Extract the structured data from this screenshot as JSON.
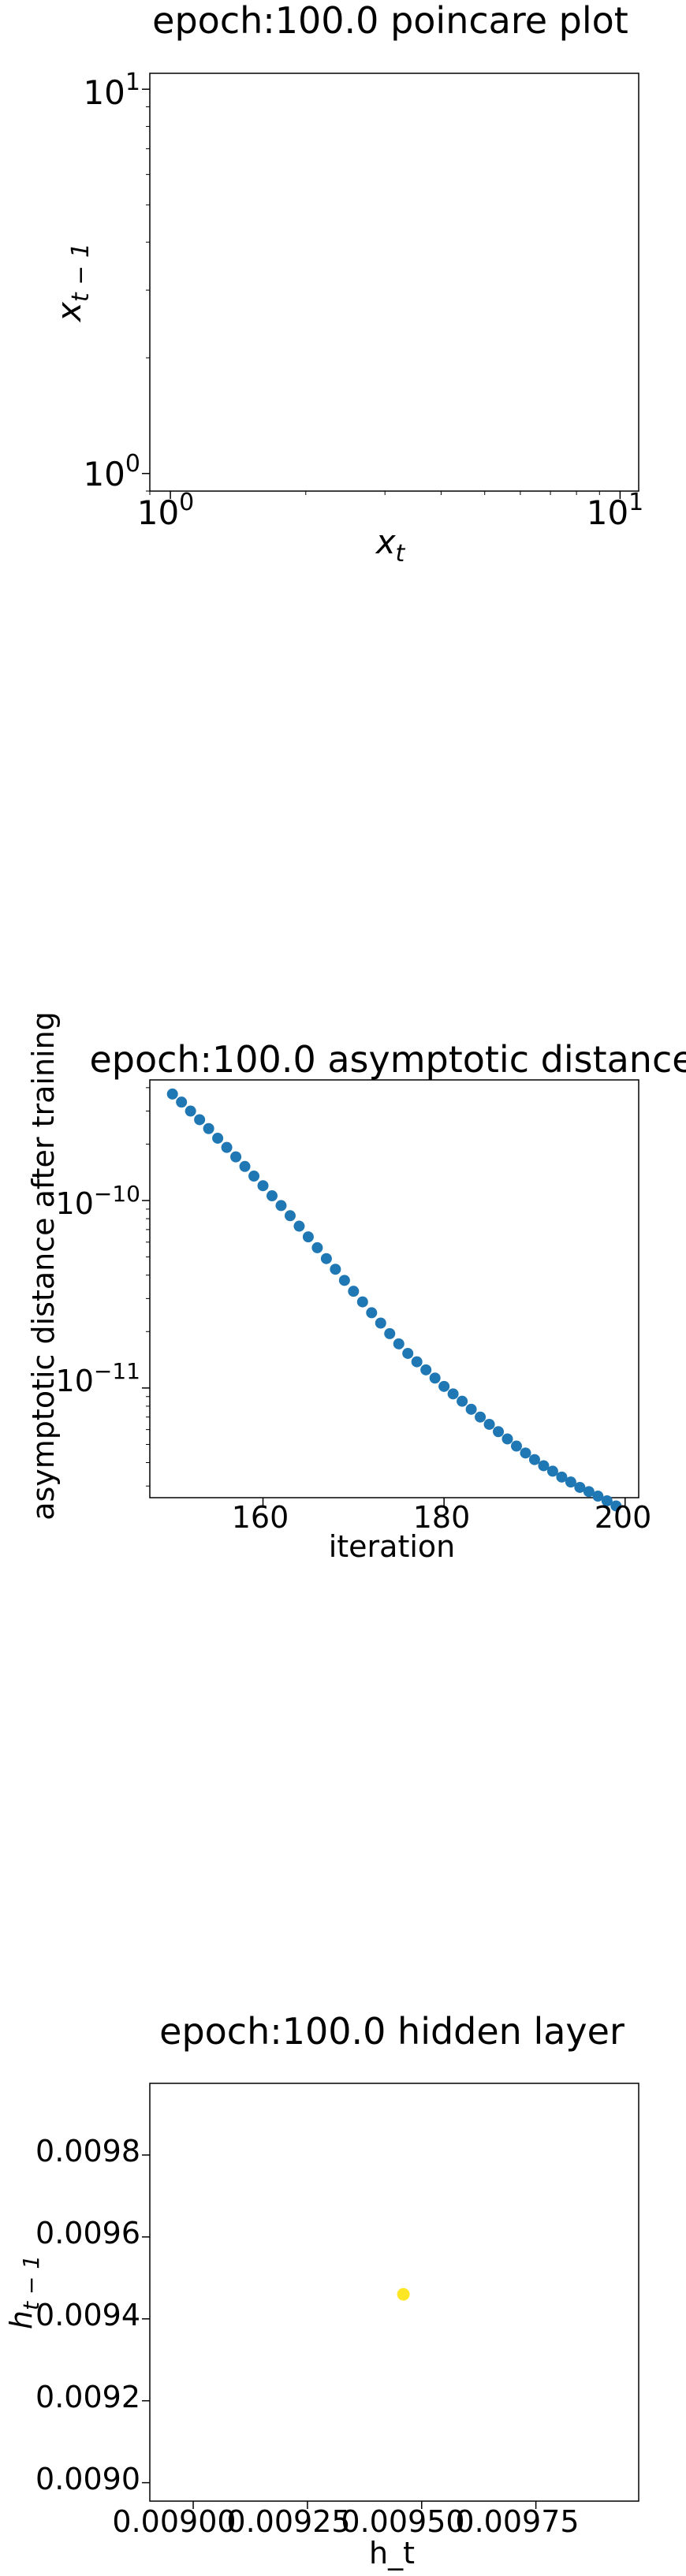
{
  "chart_data": [
    {
      "type": "scatter",
      "title": "epoch:100.0 poincare plot",
      "xlabel": "x_t",
      "ylabel": "x_{t-1}",
      "xscale": "log",
      "yscale": "log",
      "xlim": [
        0.9,
        11
      ],
      "ylim": [
        0.9,
        11
      ],
      "xticks": [
        {
          "value": 1,
          "base": "10",
          "exp": "0"
        },
        {
          "value": 10,
          "base": "10",
          "exp": "1"
        }
      ],
      "yticks": [
        {
          "value": 1,
          "base": "10",
          "exp": "0"
        },
        {
          "value": 10,
          "base": "10",
          "exp": "1"
        }
      ],
      "series": [
        {
          "x": [],
          "y": []
        }
      ],
      "grid": false
    },
    {
      "type": "scatter",
      "title": "epoch:100.0 asymptotic distance",
      "xlabel": "iteration",
      "ylabel": "asymptotic distance after training",
      "yscale": "log",
      "xlim": [
        147.5,
        201.5
      ],
      "ylim": [
        2.6e-12,
        4.4e-10
      ],
      "xticks": [
        {
          "value": 160,
          "label": "160"
        },
        {
          "value": 180,
          "label": "180"
        },
        {
          "value": 200,
          "label": "200"
        }
      ],
      "yticks": [
        {
          "value": 1e-10,
          "base": "10",
          "exp": "−10"
        },
        {
          "value": 1e-11,
          "base": "10",
          "exp": "−11"
        }
      ],
      "color": "#1f77b4",
      "series": [
        {
          "x": [
            150,
            151,
            152,
            153,
            154,
            155,
            156,
            157,
            158,
            159,
            160,
            161,
            162,
            163,
            164,
            165,
            166,
            167,
            168,
            169,
            170,
            171,
            172,
            173,
            174,
            175,
            176,
            177,
            178,
            179,
            180,
            181,
            182,
            183,
            184,
            185,
            186,
            187,
            188,
            189,
            190,
            191,
            192,
            193,
            194,
            195,
            196,
            197,
            198,
            199
          ],
          "y": [
            3.7e-10,
            3.35e-10,
            3e-10,
            2.7e-10,
            2.42e-10,
            2.15e-10,
            1.92e-10,
            1.71e-10,
            1.52e-10,
            1.35e-10,
            1.2e-10,
            1.06e-10,
            9.4e-11,
            8.3e-11,
            7.3e-11,
            6.4e-11,
            5.6e-11,
            4.9e-11,
            4.3e-11,
            3.75e-11,
            3.28e-11,
            2.88e-11,
            2.52e-11,
            2.22e-11,
            1.95e-11,
            1.72e-11,
            1.53e-11,
            1.38e-11,
            1.25e-11,
            1.13e-11,
            1.02e-11,
            9.3e-12,
            8.5e-12,
            7.7e-12,
            7e-12,
            6.4e-12,
            5.85e-12,
            5.35e-12,
            4.9e-12,
            4.5e-12,
            4.15e-12,
            3.85e-12,
            3.6e-12,
            3.35e-12,
            3.15e-12,
            2.95e-12,
            2.8e-12,
            2.65e-12,
            2.5e-12,
            2.35e-12
          ]
        }
      ],
      "grid": false
    },
    {
      "type": "scatter",
      "title": "epoch:100.0 hidden layer",
      "xlabel": "h_t",
      "ylabel": "h_{t-1}",
      "xlim": [
        0.008905,
        0.009975
      ],
      "ylim": [
        0.008955,
        0.009975
      ],
      "xticks": [
        {
          "value": 0.009,
          "label": "0.00900"
        },
        {
          "value": 0.00925,
          "label": "0.00925"
        },
        {
          "value": 0.0095,
          "label": "0.00950"
        },
        {
          "value": 0.00975,
          "label": "0.00975"
        }
      ],
      "yticks": [
        {
          "value": 0.009,
          "label": "0.0090"
        },
        {
          "value": 0.0092,
          "label": "0.0092"
        },
        {
          "value": 0.0094,
          "label": "0.0094"
        },
        {
          "value": 0.0096,
          "label": "0.0096"
        },
        {
          "value": 0.0098,
          "label": "0.0098"
        }
      ],
      "color": "#fde725",
      "series": [
        {
          "x": [
            0.00946
          ],
          "y": [
            0.00946
          ]
        }
      ],
      "grid": false
    }
  ]
}
